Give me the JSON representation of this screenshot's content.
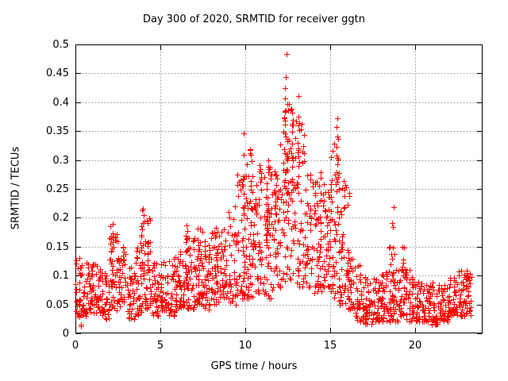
{
  "page": {
    "background": "#ffffff"
  },
  "chart_data": {
    "type": "scatter",
    "title": "Day 300 of 2020, SRMTID for receiver ggtn",
    "xlabel": "GPS time / hours",
    "ylabel": "SRMTID / TECUs",
    "xlim": [
      0,
      24
    ],
    "ylim": [
      0,
      0.5
    ],
    "xticks": {
      "values": [
        0,
        5,
        10,
        15,
        20
      ],
      "labels": [
        "0",
        "5",
        "10",
        "15",
        "20"
      ]
    },
    "yticks": {
      "values": [
        0,
        0.05,
        0.1,
        0.15,
        0.2,
        0.25,
        0.3,
        0.35,
        0.4,
        0.45,
        0.5
      ],
      "labels": [
        "0",
        "0.05",
        "0.1",
        "0.15",
        "0.2",
        "0.25",
        "0.3",
        "0.35",
        "0.4",
        "0.45",
        "0.5"
      ]
    },
    "grid": true,
    "legend": "none",
    "marker": {
      "shape": "plus",
      "color": "#ff0000",
      "size": 7
    },
    "axis_color": "#000000",
    "grid_color": "#a6a6a6",
    "seed": 73,
    "x_data_range": [
      0,
      23.35
    ],
    "y_observed_max": 0.49,
    "y_observed_max_at_hour": 12.4,
    "envelope_bins": [
      [
        0.0,
        0.5,
        0.03,
        0.135,
        38
      ],
      [
        0.5,
        1.0,
        0.03,
        0.125,
        38
      ],
      [
        1.0,
        1.5,
        0.035,
        0.125,
        38
      ],
      [
        1.5,
        2.0,
        0.025,
        0.105,
        38
      ],
      [
        2.0,
        2.5,
        0.04,
        0.175,
        38
      ],
      [
        2.5,
        3.0,
        0.04,
        0.15,
        38
      ],
      [
        3.0,
        3.5,
        0.025,
        0.115,
        38
      ],
      [
        3.5,
        4.0,
        0.03,
        0.16,
        38
      ],
      [
        4.0,
        4.5,
        0.04,
        0.2,
        38
      ],
      [
        4.5,
        5.0,
        0.03,
        0.125,
        38
      ],
      [
        5.0,
        5.5,
        0.04,
        0.125,
        38
      ],
      [
        5.5,
        6.0,
        0.03,
        0.135,
        38
      ],
      [
        6.0,
        6.5,
        0.04,
        0.145,
        38
      ],
      [
        6.5,
        7.0,
        0.04,
        0.175,
        38
      ],
      [
        7.0,
        7.5,
        0.05,
        0.185,
        38
      ],
      [
        7.5,
        8.0,
        0.04,
        0.165,
        38
      ],
      [
        8.0,
        8.5,
        0.05,
        0.18,
        38
      ],
      [
        8.5,
        9.0,
        0.06,
        0.19,
        38
      ],
      [
        9.0,
        9.5,
        0.05,
        0.22,
        38
      ],
      [
        9.5,
        10.0,
        0.06,
        0.3,
        40
      ],
      [
        10.0,
        10.5,
        0.06,
        0.3,
        40
      ],
      [
        10.5,
        11.0,
        0.07,
        0.27,
        40
      ],
      [
        11.0,
        11.5,
        0.06,
        0.29,
        40
      ],
      [
        11.5,
        12.0,
        0.07,
        0.28,
        40
      ],
      [
        12.0,
        12.5,
        0.08,
        0.42,
        42
      ],
      [
        12.5,
        13.0,
        0.09,
        0.4,
        40
      ],
      [
        13.0,
        13.5,
        0.08,
        0.38,
        40
      ],
      [
        13.5,
        14.0,
        0.08,
        0.28,
        40
      ],
      [
        14.0,
        14.5,
        0.07,
        0.28,
        40
      ],
      [
        14.5,
        15.0,
        0.08,
        0.26,
        40
      ],
      [
        15.0,
        15.5,
        0.06,
        0.33,
        40
      ],
      [
        15.5,
        16.0,
        0.05,
        0.28,
        38
      ],
      [
        16.0,
        16.5,
        0.04,
        0.15,
        38
      ],
      [
        16.5,
        17.0,
        0.02,
        0.12,
        38
      ],
      [
        17.0,
        17.5,
        0.015,
        0.1,
        38
      ],
      [
        17.5,
        18.0,
        0.02,
        0.1,
        38
      ],
      [
        18.0,
        18.5,
        0.02,
        0.11,
        38
      ],
      [
        18.5,
        19.0,
        0.02,
        0.15,
        38
      ],
      [
        19.0,
        19.5,
        0.03,
        0.13,
        38
      ],
      [
        19.5,
        20.0,
        0.02,
        0.11,
        38
      ],
      [
        20.0,
        20.5,
        0.02,
        0.09,
        38
      ],
      [
        20.5,
        21.0,
        0.02,
        0.085,
        38
      ],
      [
        21.0,
        21.5,
        0.015,
        0.09,
        38
      ],
      [
        21.5,
        22.0,
        0.02,
        0.09,
        38
      ],
      [
        22.0,
        22.5,
        0.03,
        0.1,
        38
      ],
      [
        22.5,
        23.35,
        0.03,
        0.11,
        55
      ]
    ],
    "spikes": [
      [
        0.25,
        0.1,
        0.005,
        0.06,
        8
      ],
      [
        2.15,
        0.08,
        0.09,
        0.19,
        12
      ],
      [
        3.95,
        0.1,
        0.1,
        0.225,
        16
      ],
      [
        4.25,
        0.06,
        0.08,
        0.155,
        8
      ],
      [
        6.55,
        0.06,
        0.08,
        0.203,
        12
      ],
      [
        7.3,
        0.08,
        0.08,
        0.185,
        10
      ],
      [
        8.3,
        0.06,
        0.08,
        0.19,
        8
      ],
      [
        9.9,
        0.07,
        0.14,
        0.355,
        14
      ],
      [
        10.35,
        0.08,
        0.15,
        0.33,
        14
      ],
      [
        10.9,
        0.06,
        0.16,
        0.3,
        8
      ],
      [
        11.3,
        0.08,
        0.17,
        0.31,
        12
      ],
      [
        11.75,
        0.06,
        0.16,
        0.3,
        8
      ],
      [
        12.4,
        0.09,
        0.24,
        0.49,
        22
      ],
      [
        12.75,
        0.08,
        0.2,
        0.42,
        14
      ],
      [
        13.1,
        0.07,
        0.24,
        0.42,
        10
      ],
      [
        14.45,
        0.07,
        0.14,
        0.3,
        10
      ],
      [
        15.45,
        0.07,
        0.18,
        0.39,
        14
      ],
      [
        15.75,
        0.06,
        0.1,
        0.3,
        8
      ],
      [
        16.1,
        0.05,
        0.1,
        0.25,
        6
      ],
      [
        18.7,
        0.05,
        0.05,
        0.23,
        10
      ],
      [
        19.35,
        0.06,
        0.06,
        0.15,
        6
      ],
      [
        23.1,
        0.08,
        0.05,
        0.11,
        10
      ]
    ]
  }
}
